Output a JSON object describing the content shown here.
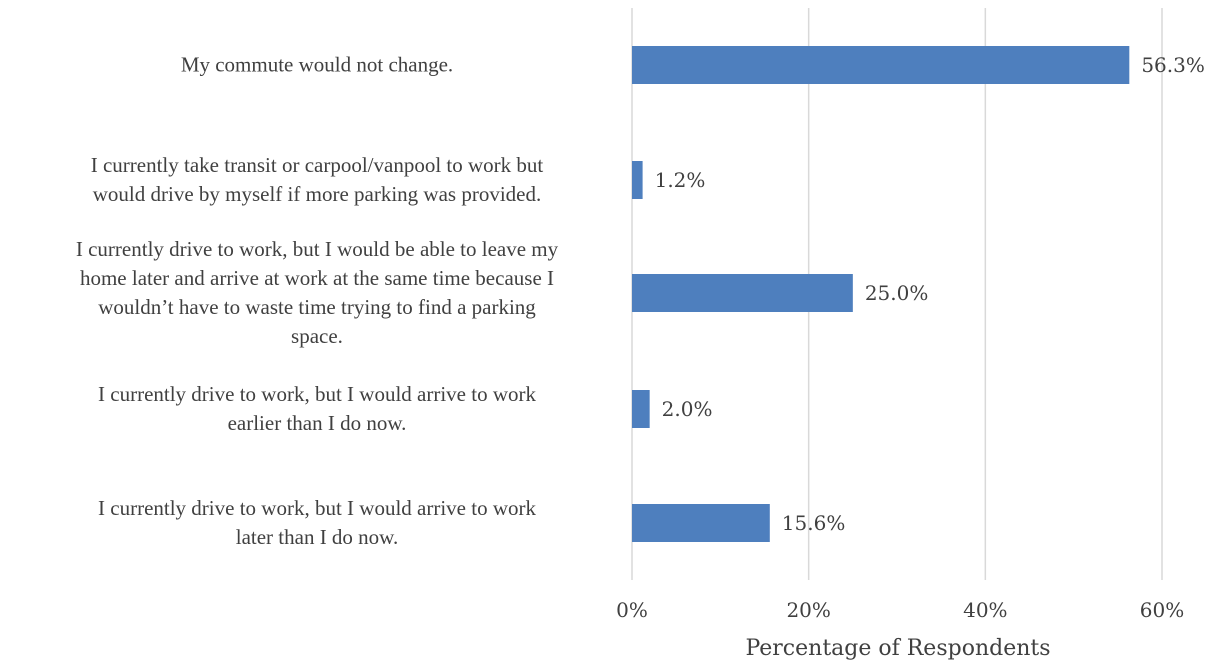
{
  "chart_data": {
    "type": "bar",
    "orientation": "horizontal",
    "categories": [
      "My commute would not change.",
      "I currently take transit or carpool/vanpool to work but\nwould drive by myself if more parking was provided.",
      "I currently drive to work, but I would be able to leave my\nhome later and arrive at work at the same time because I\nwouldn’t have to waste time trying to find a parking\nspace.",
      "I currently drive to work, but I would arrive to work\nearlier than I do now.",
      "I currently drive to work, but I would arrive to work\nlater than I do now."
    ],
    "values": [
      56.3,
      1.2,
      25.0,
      2.0,
      15.6
    ],
    "data_labels": [
      "56.3%",
      "1.2%",
      "25.0%",
      "2.0%",
      "15.6%"
    ],
    "xlabel": "Percentage of Respondents",
    "xlim": [
      0,
      60
    ],
    "x_ticks": [
      0,
      20,
      40,
      60
    ],
    "x_tick_labels": [
      "0%",
      "20%",
      "40%",
      "60%"
    ],
    "grid": "vertical",
    "bar_color": "#4e7fbe",
    "grid_color": "#d9d9d9",
    "text_color": "#404040"
  }
}
